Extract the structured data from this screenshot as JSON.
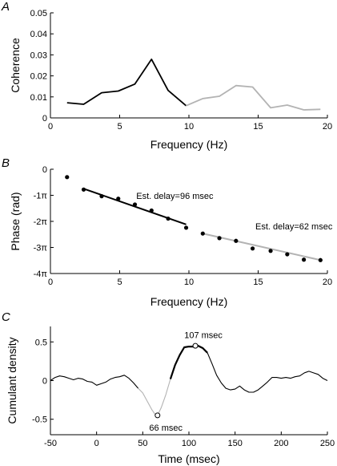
{
  "chart_data": [
    {
      "panel": "A",
      "type": "line",
      "xlabel": "Frequency (Hz)",
      "ylabel": "Coherence",
      "xlim": [
        0,
        20
      ],
      "ylim": [
        0,
        0.05
      ],
      "xticks": [
        0,
        5,
        10,
        15,
        20
      ],
      "yticks": [
        0,
        0.01,
        0.02,
        0.03,
        0.04,
        0.05
      ],
      "ytick_labels": [
        "0",
        "0.01",
        "0.02",
        "0.03",
        "0.04",
        "0.05"
      ],
      "series": [
        {
          "color": "#000000",
          "x": [
            1.2,
            2.4,
            3.7,
            4.9,
            6.1,
            7.3,
            8.5,
            9.8
          ],
          "y": [
            0.0072,
            0.0065,
            0.012,
            0.0128,
            0.0161,
            0.0279,
            0.0131,
            0.0058
          ]
        },
        {
          "color": "#b3b3b3",
          "x": [
            9.8,
            11.0,
            12.2,
            13.4,
            14.6,
            15.9,
            17.1,
            18.3,
            19.5
          ],
          "y": [
            0.0058,
            0.0092,
            0.0103,
            0.0154,
            0.0147,
            0.0048,
            0.0061,
            0.0038,
            0.0041
          ]
        }
      ]
    },
    {
      "panel": "B",
      "type": "scatter",
      "xlabel": "Frequency (Hz)",
      "ylabel": "Phase (rad)",
      "xlim": [
        0,
        20
      ],
      "ylim": [
        -12.566,
        0
      ],
      "xticks": [
        0,
        5,
        10,
        15,
        20
      ],
      "yticks": [
        0,
        -3.1416,
        -6.2832,
        -9.4248,
        -12.5664
      ],
      "ytick_labels": [
        "0",
        "-1π",
        "-2π",
        "-3π",
        "-4π"
      ],
      "points": {
        "x": [
          1.2,
          2.4,
          3.7,
          4.9,
          6.1,
          7.3,
          8.5,
          9.8,
          11.0,
          12.2,
          13.4,
          14.6,
          15.9,
          17.1,
          18.3,
          19.5
        ],
        "y": [
          -0.95,
          -2.45,
          -3.25,
          -3.55,
          -4.25,
          -4.97,
          -5.95,
          -7.05,
          -7.75,
          -8.3,
          -8.63,
          -9.55,
          -9.84,
          -10.25,
          -10.9,
          -10.95
        ]
      },
      "fit_lines": [
        {
          "color": "#000000",
          "x": [
            2.4,
            9.8
          ],
          "y": [
            -2.35,
            -6.65
          ],
          "annotation": "Est. delay=96 msec",
          "annotation_at": [
            6.2,
            -3.6
          ]
        },
        {
          "color": "#b3b3b3",
          "x": [
            11.0,
            19.5
          ],
          "y": [
            -7.75,
            -10.95
          ],
          "annotation": "Est. delay=62 msec",
          "annotation_at": [
            14.8,
            -7.25
          ]
        }
      ]
    },
    {
      "panel": "C",
      "type": "line",
      "xlabel": "Time (msec)",
      "ylabel": "Cumulant density",
      "xlim": [
        -50,
        250
      ],
      "ylim": [
        -0.7,
        0.7
      ],
      "xticks": [
        -50,
        0,
        50,
        100,
        150,
        200,
        250
      ],
      "yticks": [
        -0.5,
        0,
        0.5
      ],
      "ytick_labels": [
        "-0.5",
        "0",
        "0.5"
      ],
      "annotations": [
        {
          "text": "107 msec",
          "x": 107,
          "y": 0.45,
          "label_at": [
            95,
            0.55
          ]
        },
        {
          "text": "66 msec",
          "x": 66,
          "y": -0.45,
          "label_at": [
            57,
            -0.65
          ]
        }
      ],
      "series": [
        {
          "color": "#000000",
          "x": [
            -50,
            -45,
            -40,
            -35,
            -30,
            -25,
            -20,
            -15,
            -10,
            -5,
            0,
            5,
            10,
            15,
            20,
            25,
            30,
            35,
            40,
            45
          ],
          "y": [
            0.0,
            0.04,
            0.06,
            0.05,
            0.03,
            0.01,
            0.03,
            0.02,
            -0.01,
            -0.02,
            -0.06,
            -0.04,
            -0.02,
            0.02,
            0.04,
            0.05,
            0.07,
            0.03,
            -0.03,
            -0.1
          ]
        },
        {
          "color": "#b3b3b3",
          "x": [
            45,
            50,
            55,
            60,
            63,
            66,
            70,
            75,
            80
          ],
          "y": [
            -0.1,
            -0.16,
            -0.27,
            -0.38,
            -0.43,
            -0.45,
            -0.35,
            -0.18,
            0.02
          ]
        },
        {
          "color": "#000000",
          "bold": true,
          "x": [
            80,
            85,
            90,
            95,
            100,
            105,
            107,
            110,
            115,
            120
          ],
          "y": [
            0.02,
            0.2,
            0.33,
            0.43,
            0.44,
            0.44,
            0.45,
            0.45,
            0.42,
            0.36
          ]
        },
        {
          "color": "#000000",
          "x": [
            120,
            125,
            130,
            135,
            140,
            145,
            150,
            155,
            160,
            165,
            170,
            175,
            180,
            185,
            190,
            195,
            200,
            205,
            210,
            215,
            220,
            225,
            230,
            235,
            240,
            245,
            250
          ],
          "y": [
            0.36,
            0.22,
            0.07,
            -0.03,
            -0.1,
            -0.12,
            -0.11,
            -0.07,
            -0.12,
            -0.15,
            -0.15,
            -0.12,
            -0.07,
            -0.02,
            0.04,
            0.04,
            0.03,
            0.04,
            0.03,
            0.05,
            0.06,
            0.1,
            0.12,
            0.1,
            0.08,
            0.03,
            0.0
          ]
        }
      ]
    }
  ]
}
